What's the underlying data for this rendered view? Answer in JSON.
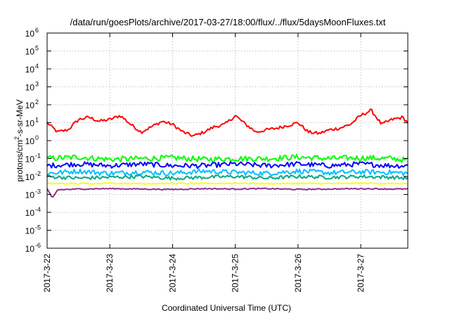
{
  "chart_data": {
    "type": "line",
    "title": "/data/run/goesPlots/archive/2017-03-27/18:00/flux/../flux/5daysMoonFluxes.txt",
    "xlabel": "Coordinated Universal Time (UTC)",
    "ylabel": "protons/cm2-s-sr-MeV",
    "ylabel_parts": {
      "pre": "protons/cm",
      "sup": "2",
      "post": "-s-sr-MeV"
    },
    "y_scale": "log",
    "ylim": [
      1e-06,
      1000000.0
    ],
    "y_ticks": [
      {
        "base": "10",
        "exp": "-6"
      },
      {
        "base": "10",
        "exp": "-5"
      },
      {
        "base": "10",
        "exp": "-4"
      },
      {
        "base": "10",
        "exp": "-3"
      },
      {
        "base": "10",
        "exp": "-2"
      },
      {
        "base": "10",
        "exp": "-1"
      },
      {
        "base": "10",
        "exp": "0"
      },
      {
        "base": "10",
        "exp": "1"
      },
      {
        "base": "10",
        "exp": "2"
      },
      {
        "base": "10",
        "exp": "3"
      },
      {
        "base": "10",
        "exp": "4"
      },
      {
        "base": "10",
        "exp": "5"
      },
      {
        "base": "10",
        "exp": "6"
      }
    ],
    "x_range_days": [
      "2017-3-22",
      "2017-3-27 18:00"
    ],
    "x_tick_labels": [
      "2017-3-22",
      "2017-3-23",
      "2017-3-24",
      "2017-3-25",
      "2017-3-26",
      "2017-3-27"
    ],
    "grid": true,
    "series": [
      {
        "color": "#ff0000",
        "x": [
          "2017-3-22 00:00",
          "2017-3-22 04:00",
          "2017-3-22 08:00",
          "2017-3-22 12:00",
          "2017-3-22 16:00",
          "2017-3-22 20:00",
          "2017-3-23 00:00",
          "2017-3-23 04:00",
          "2017-3-23 08:00",
          "2017-3-23 12:00",
          "2017-3-23 16:00",
          "2017-3-23 20:00",
          "2017-3-24 00:00",
          "2017-3-24 04:00",
          "2017-3-24 08:00",
          "2017-3-24 12:00",
          "2017-3-24 16:00",
          "2017-3-24 20:00",
          "2017-3-25 00:00",
          "2017-3-25 04:00",
          "2017-3-25 08:00",
          "2017-3-25 12:00",
          "2017-3-25 16:00",
          "2017-3-25 20:00",
          "2017-3-26 00:00",
          "2017-3-26 04:00",
          "2017-3-26 08:00",
          "2017-3-26 12:00",
          "2017-3-26 16:00",
          "2017-3-26 20:00",
          "2017-3-27 00:00",
          "2017-3-27 04:00",
          "2017-3-27 08:00",
          "2017-3-27 12:00",
          "2017-3-27 16:00",
          "2017-3-27 18:00"
        ],
        "y": [
          10,
          3,
          4,
          15,
          20,
          12,
          15,
          25,
          8,
          3,
          6,
          12,
          8,
          3,
          1.8,
          3,
          6,
          8,
          25,
          8,
          3,
          4,
          5,
          7,
          10,
          3,
          2.5,
          4,
          5,
          8,
          25,
          50,
          8,
          15,
          20,
          10
        ]
      },
      {
        "color": "#00ff00",
        "x": [
          "2017-3-22 00:00",
          "2017-3-22 12:00",
          "2017-3-23 00:00",
          "2017-3-23 12:00",
          "2017-3-24 00:00",
          "2017-3-24 12:00",
          "2017-3-25 00:00",
          "2017-3-25 12:00",
          "2017-3-26 00:00",
          "2017-3-26 12:00",
          "2017-3-27 00:00",
          "2017-3-27 12:00",
          "2017-3-27 18:00"
        ],
        "y": [
          0.1,
          0.12,
          0.09,
          0.1,
          0.11,
          0.09,
          0.1,
          0.1,
          0.12,
          0.1,
          0.11,
          0.1,
          0.08
        ]
      },
      {
        "color": "#0000ff",
        "x": [
          "2017-3-22 00:00",
          "2017-3-22 12:00",
          "2017-3-23 00:00",
          "2017-3-23 12:00",
          "2017-3-24 00:00",
          "2017-3-24 12:00",
          "2017-3-25 00:00",
          "2017-3-25 12:00",
          "2017-3-26 00:00",
          "2017-3-26 12:00",
          "2017-3-27 00:00",
          "2017-3-27 12:00",
          "2017-3-27 18:00"
        ],
        "y": [
          0.04,
          0.05,
          0.04,
          0.05,
          0.04,
          0.04,
          0.05,
          0.04,
          0.05,
          0.04,
          0.05,
          0.04,
          0.04
        ]
      },
      {
        "color": "#00bfff",
        "x": [
          "2017-3-22 00:00",
          "2017-3-22 12:00",
          "2017-3-23 00:00",
          "2017-3-23 12:00",
          "2017-3-24 00:00",
          "2017-3-24 12:00",
          "2017-3-25 00:00",
          "2017-3-25 12:00",
          "2017-3-26 00:00",
          "2017-3-26 12:00",
          "2017-3-27 00:00",
          "2017-3-27 12:00",
          "2017-3-27 18:00"
        ],
        "y": [
          0.015,
          0.02,
          0.015,
          0.018,
          0.015,
          0.02,
          0.017,
          0.015,
          0.02,
          0.016,
          0.018,
          0.017,
          0.015
        ]
      },
      {
        "color": "#00aa88",
        "x": [
          "2017-3-22 00:00",
          "2017-3-22 12:00",
          "2017-3-23 00:00",
          "2017-3-23 12:00",
          "2017-3-24 00:00",
          "2017-3-24 12:00",
          "2017-3-25 00:00",
          "2017-3-25 12:00",
          "2017-3-26 00:00",
          "2017-3-26 12:00",
          "2017-3-27 00:00",
          "2017-3-27 12:00",
          "2017-3-27 18:00"
        ],
        "y": [
          0.01,
          0.008,
          0.009,
          0.01,
          0.008,
          0.009,
          0.01,
          0.008,
          0.01,
          0.009,
          0.01,
          0.009,
          0.008
        ]
      },
      {
        "color": "#ffff00",
        "x": [
          "2017-3-22 00:00",
          "2017-3-22 12:00",
          "2017-3-23 00:00",
          "2017-3-23 12:00",
          "2017-3-24 00:00",
          "2017-3-24 12:00",
          "2017-3-25 00:00",
          "2017-3-25 12:00",
          "2017-3-26 00:00",
          "2017-3-26 12:00",
          "2017-3-27 00:00",
          "2017-3-27 12:00",
          "2017-3-27 18:00"
        ],
        "y": [
          0.004,
          0.004,
          0.0042,
          0.004,
          0.0041,
          0.004,
          0.0042,
          0.004,
          0.0041,
          0.004,
          0.0042,
          0.004,
          0.004
        ]
      },
      {
        "color": "#8b2f8b",
        "x": [
          "2017-3-22 00:00",
          "2017-3-22 02:00",
          "2017-3-22 04:00",
          "2017-3-22 12:00",
          "2017-3-23 00:00",
          "2017-3-23 12:00",
          "2017-3-24 00:00",
          "2017-3-24 12:00",
          "2017-3-25 00:00",
          "2017-3-25 12:00",
          "2017-3-26 00:00",
          "2017-3-26 12:00",
          "2017-3-27 00:00",
          "2017-3-27 12:00",
          "2017-3-27 18:00"
        ],
        "y": [
          0.002,
          0.0006,
          0.0018,
          0.002,
          0.0021,
          0.002,
          0.0019,
          0.0021,
          0.002,
          0.0021,
          0.0019,
          0.002,
          0.0021,
          0.002,
          0.002
        ]
      }
    ]
  }
}
